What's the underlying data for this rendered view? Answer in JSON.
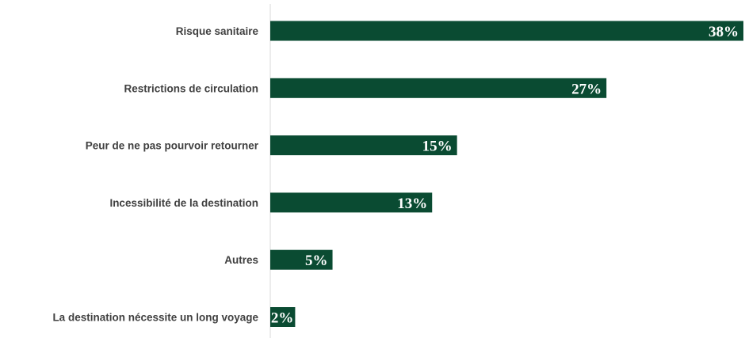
{
  "chart_data": {
    "type": "bar",
    "orientation": "horizontal",
    "title": "",
    "xlabel": "",
    "ylabel": "",
    "categories": [
      "Risque sanitaire",
      "Restrictions de circulation",
      "Peur de ne pas pourvoir retourner",
      "Incessibilité de la destination",
      "Autres",
      "La destination nécessite un long voyage"
    ],
    "values": [
      38,
      27,
      15,
      13,
      5,
      2
    ],
    "value_labels": [
      "38%",
      "27%",
      "15%",
      "13%",
      "5%",
      "2%"
    ],
    "unit": "%",
    "xlim": [
      0,
      38
    ],
    "grid": false,
    "legend": "none",
    "colors": {
      "bar": "#0a4b32",
      "value_text": "#ffffff",
      "category_text": "#404040",
      "axis": "#d9d9d9"
    }
  }
}
